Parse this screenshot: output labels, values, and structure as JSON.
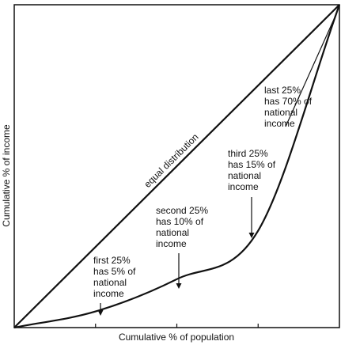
{
  "chart_data": {
    "type": "line",
    "xlabel": "Cumulative % of population",
    "ylabel": "Cumulative % of income",
    "xlim": [
      0,
      100
    ],
    "ylim": [
      0,
      100
    ],
    "x_ticks": [
      25,
      50,
      75
    ],
    "grid": false,
    "series": [
      {
        "name": "equal distribution",
        "x": [
          0,
          100
        ],
        "y": [
          0,
          100
        ]
      },
      {
        "name": "",
        "x": [
          0,
          25,
          50,
          75,
          100
        ],
        "y": [
          0,
          5,
          15,
          30,
          100
        ]
      }
    ],
    "annotations": [
      {
        "lines": [
          "first 25%",
          "has 5% of",
          "national",
          "income"
        ],
        "point": [
          25,
          5
        ]
      },
      {
        "lines": [
          "second 25%",
          "has 10% of",
          "national",
          "income"
        ],
        "point": [
          48,
          13
        ]
      },
      {
        "lines": [
          "third 25%",
          "has 15% of",
          "national",
          "income"
        ],
        "point": [
          73,
          28
        ]
      },
      {
        "lines": [
          "last 25%",
          "has 70% of",
          "national",
          "income"
        ],
        "point": [
          100,
          100
        ]
      }
    ],
    "colors": {
      "line": "#111111",
      "background": "#ffffff"
    }
  }
}
